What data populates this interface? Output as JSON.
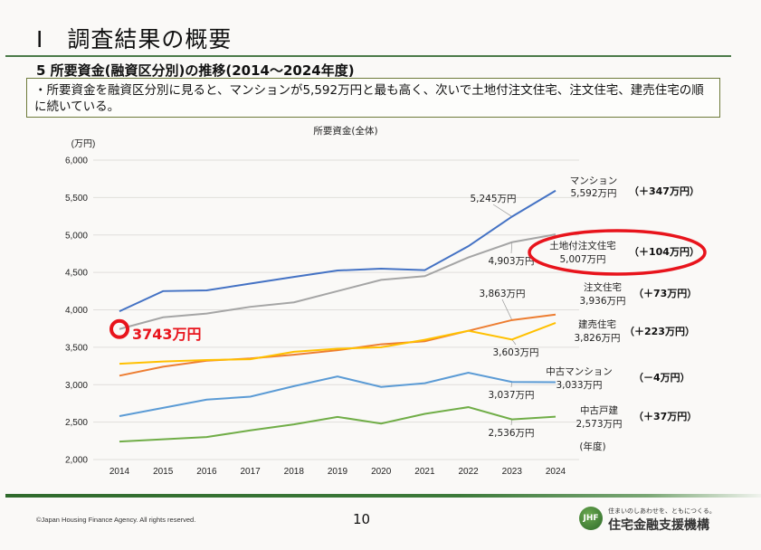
{
  "header": {
    "main_title": "Ⅰ　調査結果の概要",
    "section_title": "5  所要資金(融資区分別)の推移(2014～2024年度)",
    "summary": "・所要資金を融資区分別に見ると、マンションが5,592万円と最も高く、次いで土地付注文住宅、注文住宅、建売住宅の順に続いている。"
  },
  "chart_data": {
    "type": "line",
    "title": "所要資金(全体)",
    "ylabel": "(万円)",
    "xlabel": "(年度)",
    "ylim": [
      2000,
      6000
    ],
    "yticks": [
      2000,
      2500,
      3000,
      3500,
      4000,
      4500,
      5000,
      5500,
      6000
    ],
    "ytick_labels": [
      "2,000",
      "2,500",
      "3,000",
      "3,500",
      "4,000",
      "4,500",
      "5,000",
      "5,500",
      "6,000"
    ],
    "grid": true,
    "x": [
      "2014",
      "2015",
      "2016",
      "2017",
      "2018",
      "2019",
      "2020",
      "2021",
      "2022",
      "2023",
      "2024"
    ],
    "series": [
      {
        "name": "マンション",
        "color": "#4472c4",
        "values": [
          3980,
          4250,
          4260,
          4350,
          4440,
          4525,
          4550,
          4530,
          4850,
          5245,
          5592
        ],
        "end_label": "マンション",
        "end_value": "5,592万円",
        "delta": "（＋347万円）",
        "prev_label": "5,245万円"
      },
      {
        "name": "土地付注文住宅",
        "color": "#a5a5a5",
        "values": [
          3743,
          3900,
          3950,
          4040,
          4100,
          4250,
          4400,
          4450,
          4700,
          4903,
          5007
        ],
        "end_label": "土地付注文住宅",
        "end_value": "5,007万円",
        "delta": "（＋104万円）",
        "prev_label": "4,903万円"
      },
      {
        "name": "注文住宅",
        "color": "#ed7d31",
        "values": [
          3120,
          3240,
          3320,
          3350,
          3400,
          3460,
          3540,
          3580,
          3720,
          3863,
          3936
        ],
        "end_label": "注文住宅",
        "end_value": "3,936万円",
        "delta": "（＋73万円）",
        "prev_label": "3,863万円"
      },
      {
        "name": "建売住宅",
        "color": "#ffc000",
        "values": [
          3280,
          3310,
          3330,
          3340,
          3440,
          3480,
          3500,
          3600,
          3720,
          3603,
          3826
        ],
        "end_label": "建売住宅",
        "end_value": "3,826万円",
        "delta": "（＋223万円）",
        "prev_label": "3,603万円"
      },
      {
        "name": "中古マンション",
        "color": "#5b9bd5",
        "values": [
          2580,
          2690,
          2800,
          2840,
          2980,
          3110,
          2970,
          3020,
          3160,
          3037,
          3033
        ],
        "end_label": "中古マンション",
        "end_value": "3,033万円",
        "delta": "（－4万円）",
        "prev_label": "3,037万円"
      },
      {
        "name": "中古戸建",
        "color": "#70ad47",
        "values": [
          2240,
          2270,
          2300,
          2390,
          2470,
          2570,
          2480,
          2610,
          2700,
          2536,
          2573
        ],
        "end_label": "中古戸建",
        "end_value": "2,573万円",
        "delta": "（＋37万円）",
        "prev_label": "2,536万円"
      }
    ],
    "annotations": {
      "highlight_2014": "3743万円",
      "highlight_color": "#e8141c"
    }
  },
  "footer": {
    "copyright": "©Japan Housing Finance Agency. All rights reserved.",
    "page_number": "10",
    "logo_tagline": "住まいのしあわせを、ともにつくる。",
    "logo_name": "住宅金融支援機構",
    "logo_mark": "JHF"
  }
}
